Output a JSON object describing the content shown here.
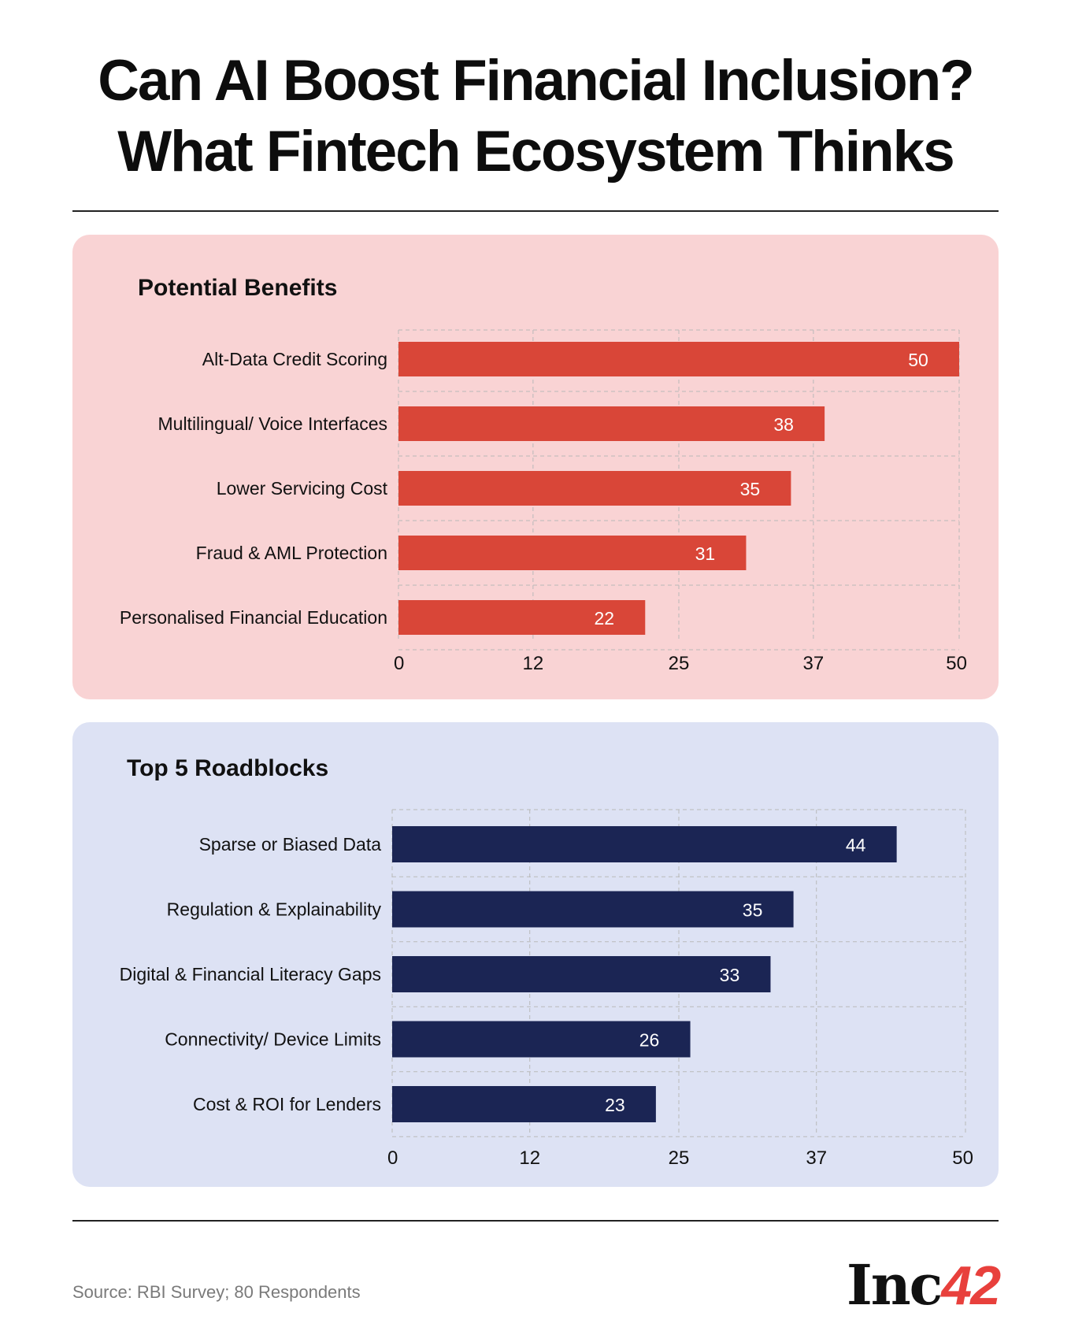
{
  "title_line1": "Can AI Boost Financial Inclusion?",
  "title_line2": "What Fintech Ecosystem Thinks",
  "source": "Source: RBI Survey; 80 Respondents",
  "logo": {
    "text": "Inc",
    "number": "42"
  },
  "colors": {
    "benefits_bar": "#d94638",
    "roadblocks_bar": "#1b2554",
    "benefits_bg": "#f9d3d4",
    "roadblocks_bg": "#dde2f4"
  },
  "chart_data": [
    {
      "type": "bar",
      "orientation": "horizontal",
      "title": "Potential Benefits",
      "categories": [
        "Alt-Data Credit Scoring",
        "Multilingual/ Voice Interfaces",
        "Lower Servicing Cost",
        "Fraud & AML Protection",
        "Personalised Financial Education"
      ],
      "values": [
        50,
        38,
        35,
        31,
        22
      ],
      "xticks": [
        "0",
        "12",
        "25",
        "37",
        "50"
      ],
      "xlim": [
        0,
        50
      ],
      "grid": true
    },
    {
      "type": "bar",
      "orientation": "horizontal",
      "title": "Top 5 Roadblocks",
      "categories": [
        "Sparse or Biased Data",
        "Regulation & Explainability",
        "Digital & Financial Literacy Gaps",
        "Connectivity/ Device Limits",
        "Cost & ROI for Lenders"
      ],
      "values": [
        44,
        35,
        33,
        26,
        23
      ],
      "xticks": [
        "0",
        "12",
        "25",
        "37",
        "50"
      ],
      "xlim": [
        0,
        50
      ],
      "grid": true
    }
  ]
}
